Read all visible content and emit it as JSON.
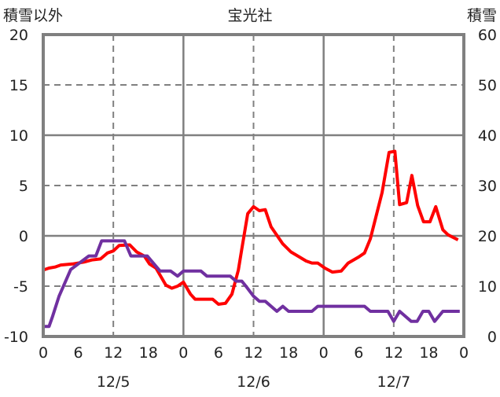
{
  "chart_data": {
    "type": "line",
    "title": "宝光社",
    "ylabel_left": "積雪以外",
    "ylabel_right": "積雪",
    "ylim_left": [
      -10,
      20
    ],
    "ylim_right": [
      0,
      60
    ],
    "yticks_left": [
      "20",
      "15",
      "10",
      "5",
      "0",
      "-5",
      "-10"
    ],
    "yticks_right": [
      "60",
      "50",
      "40",
      "30",
      "20",
      "10",
      "0"
    ],
    "xlim_hours": [
      0,
      72
    ],
    "xtick_labels": [
      "0",
      "6",
      "12",
      "18",
      "0",
      "6",
      "12",
      "18",
      "0",
      "6",
      "12",
      "18",
      "0"
    ],
    "date_labels": [
      "12/5",
      "12/6",
      "12/7"
    ],
    "grid": true,
    "series": [
      {
        "name": "積雪以外",
        "axis": "left",
        "color": "#ff0000",
        "points": [
          [
            0,
            -3.4
          ],
          [
            1,
            -3.2
          ],
          [
            2,
            -3.1
          ],
          [
            3,
            -2.9
          ],
          [
            5,
            -2.8
          ],
          [
            7,
            -2.6
          ],
          [
            8.3,
            -2.4
          ],
          [
            9.8,
            -2.3
          ],
          [
            11,
            -1.7
          ],
          [
            12,
            -1.5
          ],
          [
            13,
            -0.95
          ],
          [
            14.8,
            -0.9
          ],
          [
            16,
            -1.6
          ],
          [
            17.3,
            -2.0
          ],
          [
            18.2,
            -2.8
          ],
          [
            19.3,
            -3.2
          ],
          [
            21,
            -4.9
          ],
          [
            22,
            -5.2
          ],
          [
            23,
            -5.0
          ],
          [
            24,
            -4.6
          ],
          [
            25.2,
            -5.8
          ],
          [
            26,
            -6.3
          ],
          [
            29,
            -6.3
          ],
          [
            30,
            -6.8
          ],
          [
            31.2,
            -6.7
          ],
          [
            32.3,
            -5.8
          ],
          [
            33.4,
            -3.4
          ],
          [
            34,
            -1.3
          ],
          [
            35,
            2.2
          ],
          [
            36,
            2.9
          ],
          [
            37,
            2.5
          ],
          [
            38,
            2.6
          ],
          [
            39,
            0.9
          ],
          [
            41,
            -0.8
          ],
          [
            42.4,
            -1.6
          ],
          [
            45,
            -2.5
          ],
          [
            46,
            -2.7
          ],
          [
            47,
            -2.7
          ],
          [
            48.2,
            -3.2
          ],
          [
            49.5,
            -3.6
          ],
          [
            51,
            -3.5
          ],
          [
            52.2,
            -2.7
          ],
          [
            54,
            -2.1
          ],
          [
            55,
            -1.7
          ],
          [
            56,
            -0.3
          ],
          [
            58,
            4.3
          ],
          [
            59.2,
            8.3
          ],
          [
            60.2,
            8.4
          ],
          [
            61,
            3.1
          ],
          [
            62.2,
            3.3
          ],
          [
            63.1,
            6.0
          ],
          [
            64.1,
            3.0
          ],
          [
            65.1,
            1.4
          ],
          [
            66.2,
            1.4
          ],
          [
            67.2,
            2.9
          ],
          [
            68.4,
            0.6
          ],
          [
            69.3,
            0.1
          ],
          [
            71,
            -0.4
          ]
        ]
      },
      {
        "name": "積雪",
        "axis": "right",
        "color": "#7030a0",
        "points": [
          [
            0,
            2
          ],
          [
            1,
            2
          ],
          [
            1.6,
            4
          ],
          [
            2.7,
            8
          ],
          [
            4.7,
            13.3
          ],
          [
            7.8,
            16
          ],
          [
            9,
            16
          ],
          [
            10,
            19
          ],
          [
            13.9,
            19
          ],
          [
            15,
            16
          ],
          [
            17.8,
            16
          ],
          [
            20,
            13
          ],
          [
            21.8,
            13
          ],
          [
            23,
            12
          ],
          [
            24,
            13
          ],
          [
            27,
            13
          ],
          [
            28,
            12
          ],
          [
            32,
            12
          ],
          [
            33,
            11
          ],
          [
            34,
            11
          ],
          [
            34.7,
            10
          ],
          [
            36,
            8
          ],
          [
            37,
            7
          ],
          [
            38,
            7
          ],
          [
            40,
            5
          ],
          [
            41,
            6
          ],
          [
            42,
            5
          ],
          [
            46,
            5
          ],
          [
            47,
            6
          ],
          [
            55,
            6
          ],
          [
            56,
            5
          ],
          [
            59,
            5
          ],
          [
            60,
            3
          ],
          [
            61,
            5
          ],
          [
            63,
            3
          ],
          [
            64,
            3
          ],
          [
            65,
            5
          ],
          [
            66,
            5
          ],
          [
            67,
            3
          ],
          [
            68.4,
            5
          ],
          [
            71.3,
            5
          ]
        ]
      }
    ]
  }
}
